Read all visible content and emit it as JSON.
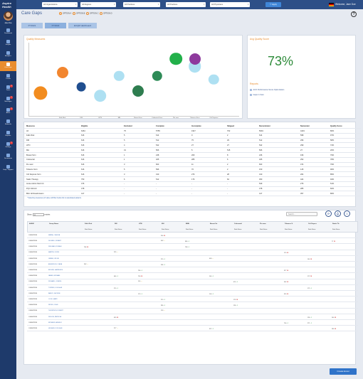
{
  "brand": "Aspire Health",
  "user": {
    "name": "Jane Doe"
  },
  "nav": [
    {
      "label": "Dashboard",
      "icon": "dashboard-icon",
      "active": false,
      "badge": ""
    },
    {
      "label": "Insights",
      "icon": "insights-icon",
      "active": false,
      "badge": ""
    },
    {
      "label": "Analytics",
      "icon": "analytics-icon",
      "active": false,
      "badge": ""
    },
    {
      "label": "Care Gaps",
      "icon": "heart-icon",
      "active": true,
      "badge": ""
    },
    {
      "label": "Trends",
      "icon": "trends-icon",
      "active": false,
      "badge": ""
    },
    {
      "label": "Tasks",
      "icon": "tasks-icon",
      "active": false,
      "badge": "4"
    },
    {
      "label": "Messages",
      "icon": "messages-icon",
      "active": false,
      "badge": "2"
    },
    {
      "label": "Alerts",
      "icon": "alerts-icon",
      "active": false,
      "badge": "3"
    },
    {
      "label": "Referrals",
      "icon": "referrals-icon",
      "active": false,
      "badge": ""
    },
    {
      "label": "Reports",
      "icon": "reports-icon",
      "active": false,
      "badge": ""
    },
    {
      "label": "Settings",
      "icon": "settings-icon",
      "active": false,
      "badge": "1"
    },
    {
      "label": "Documents",
      "icon": "documents-icon",
      "active": false,
      "badge": ""
    },
    {
      "label": "Help / Support",
      "icon": "help-icon",
      "active": false,
      "badge": ""
    }
  ],
  "topbar": {
    "filters": [
      "All Organizations",
      "All Regions",
      "All Practices",
      "All Physicians"
    ],
    "apply": "Apply",
    "welcome": "Welcome, Jane Doe"
  },
  "page": {
    "title": "Care Gaps",
    "radios": [
      "OPTION A",
      "OPTION B",
      "OPTION C",
      "OPTION D"
    ],
    "help": "?"
  },
  "tabs": [
    "PY2021",
    "PY2022",
    "ECQM dashboard"
  ],
  "quality": {
    "title": "Quality Measures"
  },
  "chart_data": {
    "type": "scatter",
    "title": "Quality Measures",
    "categories": [
      "Falls Risk",
      "DM",
      "HTN",
      "MH",
      "Breast Scrn",
      "Colorectal Scrn",
      "Flu vacc",
      "Tobacco Scrn",
      "Ctrl Depress"
    ],
    "points": [
      {
        "category": "All",
        "y": 0.32,
        "size": 12,
        "color": "#f28c1f"
      },
      {
        "category": "Falls Risk",
        "y": 0.6,
        "size": 10,
        "color": "#f2862f"
      },
      {
        "category": "DM",
        "y": 0.4,
        "size": 8,
        "color": "#1f4e8f"
      },
      {
        "category": "HTN",
        "y": 0.28,
        "size": 11,
        "color": "#aee0f2"
      },
      {
        "category": "MH",
        "y": 0.55,
        "size": 9,
        "color": "#aee0f2"
      },
      {
        "category": "Breast Scrn",
        "y": 0.35,
        "size": 10,
        "color": "#2e7d4f"
      },
      {
        "category": "Colorectal Scrn",
        "y": 0.55,
        "size": 9,
        "color": "#2e8b57"
      },
      {
        "category": "Flu vacc",
        "y": 0.78,
        "size": 11,
        "color": "#22b04a"
      },
      {
        "category": "Tobacco Scrn",
        "y": 0.68,
        "size": 11,
        "color": "#aee0f2"
      },
      {
        "category": "Tobacco Scrn",
        "y": 0.78,
        "size": 10,
        "color": "#8e3a9d"
      },
      {
        "category": "Ctrl Depress",
        "y": 0.5,
        "size": 9,
        "color": "#aee0f2"
      }
    ]
  },
  "avg": {
    "title": "Avg Quality Score",
    "value": "73%"
  },
  "reports": {
    "title": "Reports",
    "items": [
      "ACO Performance Score Optimization",
      "Gaps in Care"
    ]
  },
  "measures": {
    "headers": [
      "Measures",
      "Eligible",
      "Excluded",
      "Complete",
      "Incomplete",
      "Skipped",
      "Denominator",
      "Numerator",
      "Quality Score"
    ],
    "rows": [
      [
        "All",
        "6464",
        "75",
        "5755",
        "1947",
        "702",
        "5604",
        "4419",
        "80%"
      ],
      [
        "Falls Risk",
        "616",
        "5",
        "614",
        "0",
        "2",
        "614",
        "598",
        "97%"
      ],
      [
        "DM",
        "616",
        "5",
        "512",
        "75",
        "29",
        "512",
        "296",
        "58%"
      ],
      [
        "HTN",
        "616",
        "4",
        "542",
        "27",
        "27",
        "542",
        "299",
        "74%"
      ],
      [
        "MH",
        "616",
        "31",
        "506",
        "5",
        "515",
        "506",
        "27",
        "20%"
      ],
      [
        "Breast Scrn",
        "616",
        "1",
        "248",
        "260",
        "8",
        "246",
        "196",
        "79%"
      ],
      [
        "Colorectal",
        "616",
        "1",
        "325",
        "285",
        "6",
        "325",
        "252",
        "78%"
      ],
      [
        "Flu vacc",
        "616",
        "3",
        "603",
        "11",
        "2",
        "603",
        "474",
        "79%"
      ],
      [
        "Tobacco Scrn",
        "616",
        "5",
        "596",
        "76",
        "2",
        "150",
        "145",
        "96%"
      ],
      [
        "Ctrl Depress Scrn",
        "616",
        "3",
        "310",
        "276",
        "28",
        "310",
        "264",
        "85%"
      ],
      [
        "Statin Therapy",
        "750",
        "6",
        "512",
        "176",
        "62",
        "450",
        "424",
        "94%"
      ],
      [
        "Acute Admin Mult CC",
        "476",
        "-",
        "-",
        "-",
        "-",
        "549",
        "276",
        "51%"
      ],
      [
        "PQI: ASCAC",
        "478",
        "-",
        "-",
        "-",
        "-",
        "478",
        "285",
        "60%"
      ],
      [
        "Bbd. All Readmission",
        "417",
        "-",
        "-",
        "-",
        "-",
        "417",
        "357",
        "86%"
      ]
    ],
    "note": "* Selecting measures (of value will filter below list to associated patients."
  },
  "detail": {
    "show": "Show",
    "entries": "entries",
    "entries_value": "10",
    "search_placeholder": "Search...",
    "columns": [
      "AGEM",
      "Group Name",
      "Falls Risk",
      "DM",
      "HTN",
      "MH",
      "BMH",
      "Breast Sc.",
      "Colorectal",
      "Flu vacc",
      "Tobacco S.",
      "Ctrl Depres",
      "Statin Th."
    ],
    "subhead": "Rank  Status",
    "rows": [
      {
        "id": "CGB0678956",
        "name": "MARIA, CLAUDIA",
        "cells": {
          "5": [
            "200",
            "red"
          ]
        }
      },
      {
        "id": "CGB0678956",
        "name": "DE PAKLI, ROBERT",
        "cells": {
          "5": [
            "302",
            "yellow"
          ],
          "6": [
            "380",
            "green"
          ],
          "12": [
            "77",
            "red"
          ]
        }
      },
      {
        "id": "CGB0678956",
        "name": "WILLIAMS, RONALD",
        "cells": {
          "6": [
            "798",
            "green"
          ],
          "2": [
            "766",
            "red"
          ]
        }
      },
      {
        "id": "CGB0678956",
        "name": "MARTIN, DORIS",
        "cells": {
          "3": [
            "225",
            "yellow"
          ],
          "10": [
            "170",
            "red"
          ]
        }
      },
      {
        "id": "CGB0678956",
        "name": "GRAND, WILLIE",
        "cells": {
          "5": [
            "270",
            "green"
          ],
          "7": [
            "400",
            "yellow"
          ],
          "11": [
            "144",
            "red"
          ]
        }
      },
      {
        "id": "CGB0678956",
        "name": "ANDERSON, CLARA",
        "cells": {
          "2": [
            "262",
            "yellow"
          ],
          "5": [
            "236",
            "green"
          ]
        }
      },
      {
        "id": "CGB0678956",
        "name": "BROWN, LAWRENCE",
        "cells": {
          "4": [
            "780",
            "green"
          ],
          "10": [
            "377",
            "red"
          ]
        }
      },
      {
        "id": "CGB0678956",
        "name": "JAMES, MICHAEL",
        "cells": {
          "3": [
            "460",
            "green"
          ],
          "4": [
            "730",
            "red"
          ],
          "7": [
            "140",
            "green"
          ],
          "11": [
            "172",
            "red"
          ]
        }
      },
      {
        "id": "CGB0678956",
        "name": "RICHARD, JOSEPH",
        "cells": {
          "4": [
            "110",
            "yellow"
          ],
          "8": [
            "470",
            "green"
          ],
          "10": [
            "302",
            "red"
          ]
        }
      },
      {
        "id": "CGB0678956",
        "name": "TORRES, DOUGLAS",
        "cells": {
          "3": [
            "270",
            "green"
          ],
          "11": [
            "179",
            "green"
          ]
        }
      },
      {
        "id": "CGB0678956",
        "name": "BAILEY, GEORGE",
        "cells": {
          "4": [
            "170",
            "green"
          ],
          "7": [
            "100",
            "green"
          ],
          "10": [
            "320",
            "red"
          ]
        }
      },
      {
        "id": "CGB0678956",
        "name": "COOK, MARY",
        "cells": {
          "5": [
            "270",
            "green"
          ],
          "8": [
            "176",
            "red"
          ]
        }
      },
      {
        "id": "CGB0678956",
        "name": "REYES, JOHN",
        "cells": {
          "5": [
            "280",
            "green"
          ],
          "8": [
            "196",
            "green"
          ]
        }
      },
      {
        "id": "CGB0678956",
        "name": "THOMPSON, ROBERT",
        "cells": {
          "5": [
            "124",
            "yellow"
          ]
        }
      },
      {
        "id": "CGB0678956",
        "name": "WILSON, PATRICIA",
        "cells": {
          "3": [
            "420",
            "red"
          ],
          "11": [
            "156",
            "green"
          ],
          "12": [
            "140",
            "red"
          ]
        }
      },
      {
        "id": "CGB0678956",
        "name": "MORALES, ANGELO",
        "cells": {
          "10": [
            "700",
            "green"
          ],
          "11": [
            "271",
            "green"
          ]
        }
      },
      {
        "id": "CGB0678956",
        "name": "HUGHES, DOUGLAS",
        "cells": {
          "3": [
            "277",
            "yellow"
          ],
          "7": [
            "312",
            "green"
          ],
          "12": [
            "180",
            "red"
          ]
        }
      }
    ],
    "create": "Create Excel"
  }
}
